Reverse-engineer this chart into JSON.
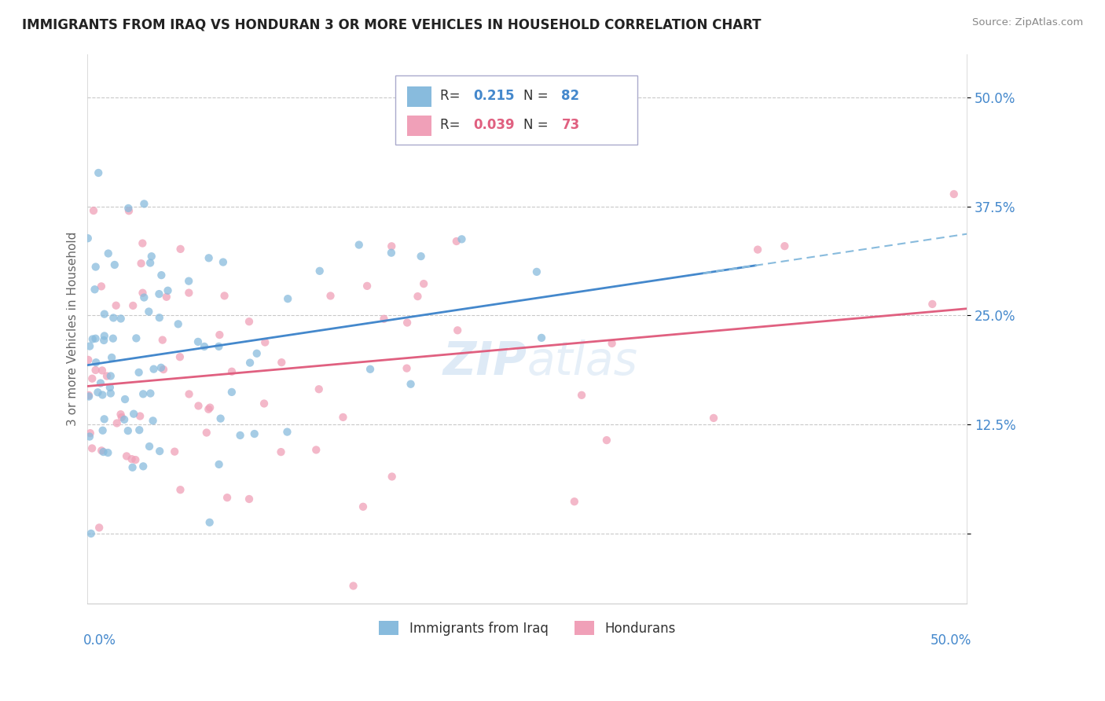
{
  "title": "IMMIGRANTS FROM IRAQ VS HONDURAN 3 OR MORE VEHICLES IN HOUSEHOLD CORRELATION CHART",
  "source": "Source: ZipAtlas.com",
  "ylabel": "3 or more Vehicles in Household",
  "ytick_labels": [
    "",
    "12.5%",
    "25.0%",
    "37.5%",
    "50.0%"
  ],
  "ytick_values": [
    0,
    0.125,
    0.25,
    0.375,
    0.5
  ],
  "xlim": [
    0,
    0.5
  ],
  "ylim": [
    -0.08,
    0.55
  ],
  "series1_color": "#88bbdd",
  "series2_color": "#f0a0b8",
  "trend1_color": "#4488cc",
  "trend2_color": "#e06080",
  "trend1_dash_color": "#88bbdd",
  "dashed_line_color": "#bbbbbb",
  "watermark_color": "#c8ddf0",
  "series1_R": 0.215,
  "series1_N": 82,
  "series2_R": 0.039,
  "series2_N": 73,
  "legend_color1": "#88bbdd",
  "legend_color2": "#f0a0b8",
  "legend_text_color": "#333333",
  "legend_val_color1": "#4488cc",
  "legend_val_color2": "#e06080",
  "axis_color": "#cccccc",
  "grid_color": "#e8e8e8",
  "tick_label_color": "#4488cc",
  "ylabel_color": "#666666",
  "title_color": "#222222",
  "source_color": "#888888",
  "xlabel_color": "#4488cc",
  "background_color": "#ffffff"
}
